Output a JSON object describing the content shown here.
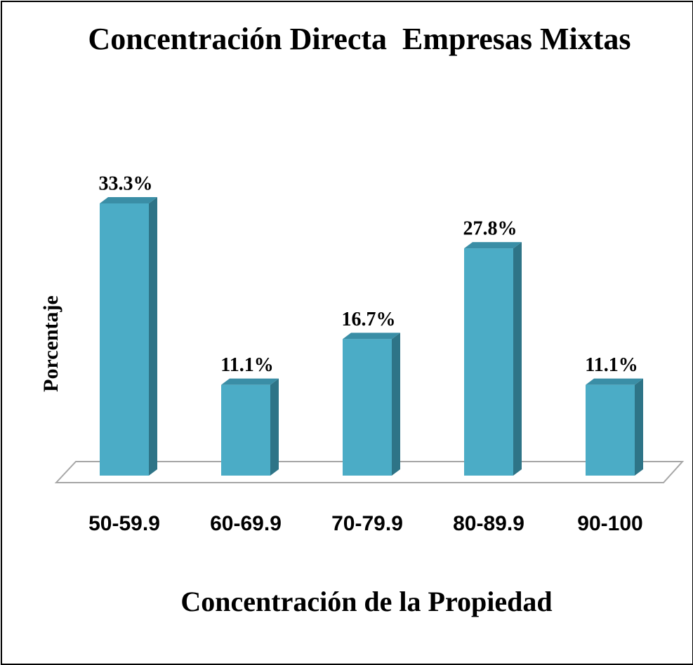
{
  "chart_data": {
    "type": "bar3d",
    "title": "Concentración Directa  Empresas Mixtas",
    "x_label": "Concentración de la Propiedad",
    "y_label": "Porcentaje",
    "categories": [
      "50-59.9",
      "60-69.9",
      "70-79.9",
      "80-89.9",
      "90-100"
    ],
    "values": [
      33.3,
      11.1,
      16.7,
      27.8,
      11.1
    ],
    "value_labels": [
      "33.3%",
      "11.1%",
      "16.7%",
      "27.8%",
      "11.1%"
    ],
    "color": "#4bacc6"
  }
}
